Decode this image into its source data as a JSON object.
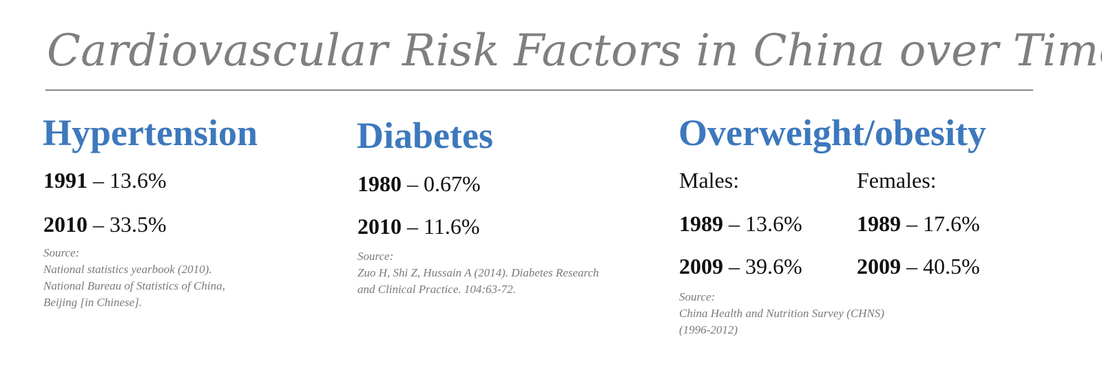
{
  "title": "Cardiovascular Risk Factors in China over Time",
  "hypertension": {
    "heading": "Hypertension",
    "stats": [
      {
        "year": "1991",
        "value": " – 13.6%"
      },
      {
        "year": "2010",
        "value": " – 33.5%"
      }
    ],
    "source": [
      "Source:",
      "National statistics yearbook (2010).",
      "National Bureau of Statistics of China,",
      "Beijing [in Chinese]."
    ]
  },
  "diabetes": {
    "heading": "Diabetes",
    "stats": [
      {
        "year": "1980",
        "value": " – 0.67%"
      },
      {
        "year": "2010",
        "value": " – 11.6%"
      }
    ],
    "source": [
      "Source:",
      "Zuo H, Shi Z, Hussain A (2014). Diabetes Research",
      "and Clinical Practice. 104:63-72."
    ]
  },
  "obesity": {
    "heading": "Overweight/obesity",
    "males_label": "Males:",
    "females_label": "Females:",
    "males": [
      {
        "year": "1989",
        "value": " – 13.6%"
      },
      {
        "year": "2009",
        "value": " – 39.6%"
      }
    ],
    "females": [
      {
        "year": "1989",
        "value": " – 17.6%"
      },
      {
        "year": "2009",
        "value": " – 40.5%"
      }
    ],
    "source": [
      "Source:",
      "China Health and Nutrition Survey (CHNS)",
      "(1996-2012)"
    ]
  },
  "colors": {
    "title": "#7f7f7f",
    "heading": "#3d78bd",
    "body": "#111111",
    "source": "#7a7a7a",
    "rule": "#8a8a8a"
  }
}
